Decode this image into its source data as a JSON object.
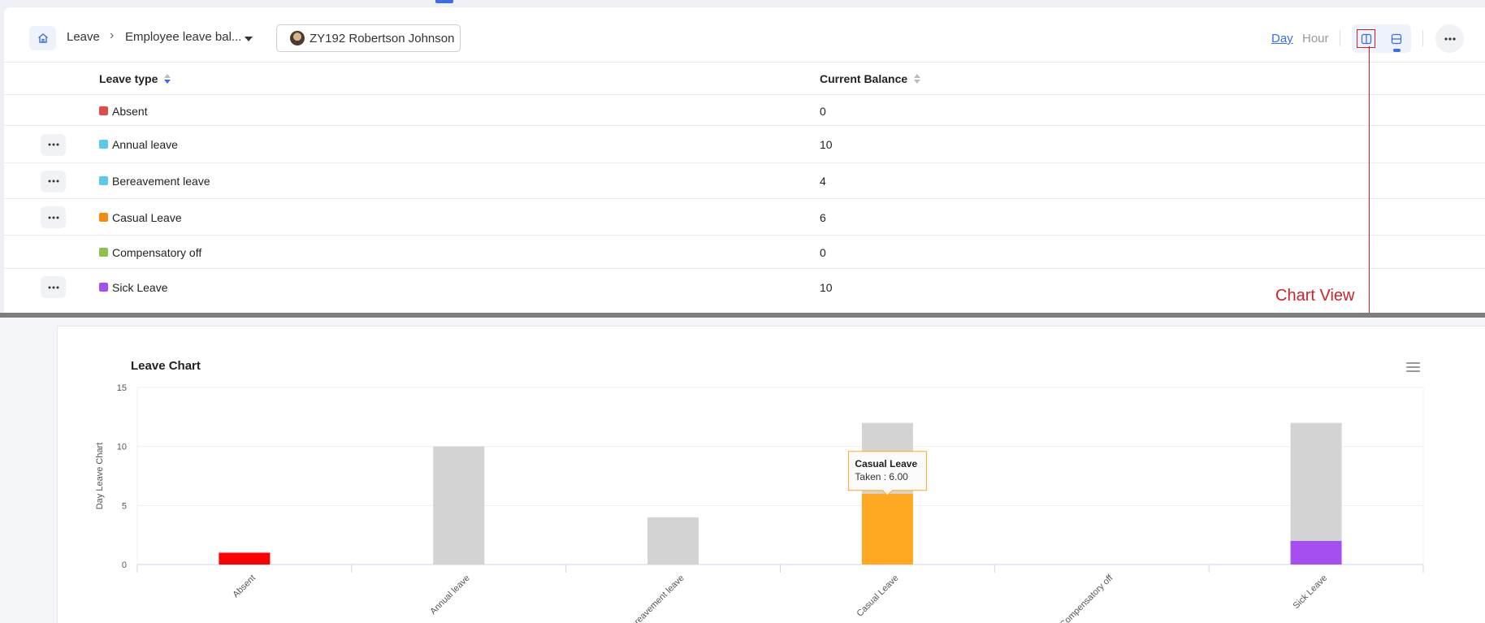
{
  "breadcrumb": {
    "module": "Leave",
    "report": "Employee leave bal..."
  },
  "employee": {
    "label": "ZY192 Robertson Johnson"
  },
  "units": {
    "day": "Day",
    "hour": "Hour"
  },
  "table": {
    "columns": [
      "Leave type",
      "Current Balance"
    ],
    "rows": [
      {
        "type": "Absent",
        "balance": "0",
        "color": "#e04c4c",
        "menu": false
      },
      {
        "type": "Annual leave",
        "balance": "10",
        "color": "#5cc8f0",
        "menu": true
      },
      {
        "type": "Bereavement leave",
        "balance": "4",
        "color": "#5cc8f0",
        "menu": true
      },
      {
        "type": "Casual Leave",
        "balance": "6",
        "color": "#f58a0b",
        "menu": true
      },
      {
        "type": "Compensatory off",
        "balance": "0",
        "color": "#8bc34a",
        "menu": false
      },
      {
        "type": "Sick Leave",
        "balance": "10",
        "color": "#a54ff0",
        "menu": true
      }
    ]
  },
  "annotation": {
    "text": "Chart View"
  },
  "chart_data": {
    "type": "bar",
    "title": "Leave Chart",
    "ylabel": "Day Leave Chart",
    "xlabel": "",
    "ylim": [
      0,
      15
    ],
    "yticks": [
      "0",
      "5",
      "10",
      "15"
    ],
    "categories": [
      "Absent",
      "Annual leave",
      "Bereavement leave",
      "Casual Leave",
      "Compensatory off",
      "Sick Leave"
    ],
    "series": [
      {
        "values": [
          1,
          0,
          0,
          6,
          0,
          2
        ],
        "colors": [
          "#ff0000",
          "#5cc8f0",
          "#5cc8f0",
          "#ffa821",
          "#8bc34a",
          "#a54ff0"
        ]
      },
      {
        "values": [
          0,
          10,
          4,
          6,
          0,
          10
        ],
        "color": "#d3d3d3"
      }
    ],
    "grid": true,
    "tooltip": {
      "category": "Casual Leave",
      "title": "Casual Leave",
      "text": "Taken : 6.00"
    }
  }
}
